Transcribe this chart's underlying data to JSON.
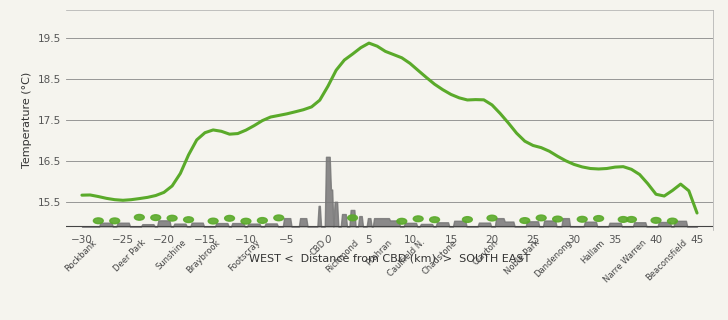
{
  "title": "",
  "ylabel": "Temperature (°C)",
  "xlabel": "WEST <  Distance from CBD (km)  >  SOUTH EAST",
  "xlim": [
    -32,
    47
  ],
  "ylim": [
    14.8,
    20.2
  ],
  "yticks": [
    15.5,
    16.5,
    17.5,
    18.5,
    19.5
  ],
  "xticks": [
    -30,
    -25,
    -20,
    -15,
    -10,
    -5,
    0,
    5,
    10,
    15,
    20,
    25,
    30,
    35,
    40,
    45
  ],
  "bg_color": "#f5f4ee",
  "line_color": "#5aaa2a",
  "grid_color": "#888888",
  "location_labels": [
    "Rockbank",
    "Deer Park",
    "Sunshine",
    "Braybrook",
    "Footscray",
    "CBD",
    "Richmond",
    "Prahran",
    "Caulfield N.",
    "Chadstone",
    "Clayton",
    "Noble Park",
    "Dandenong",
    "Hallam",
    "Narre Warren",
    "Beaconsfield"
  ],
  "location_x": [
    -28,
    -22,
    -17,
    -13,
    -8,
    0,
    4,
    8,
    12,
    16,
    21,
    26,
    30,
    34,
    39,
    44
  ],
  "temp_x": [
    -30,
    -29,
    -28,
    -27,
    -26,
    -25,
    -24,
    -23,
    -22,
    -21,
    -20,
    -19,
    -18,
    -17,
    -16,
    -15,
    -14,
    -13,
    -12,
    -11,
    -10,
    -9,
    -8,
    -7,
    -6,
    -5,
    -4,
    -3,
    -2,
    -1,
    0,
    1,
    2,
    3,
    4,
    5,
    6,
    7,
    8,
    9,
    10,
    11,
    12,
    13,
    14,
    15,
    16,
    17,
    18,
    19,
    20,
    21,
    22,
    23,
    24,
    25,
    26,
    27,
    28,
    29,
    30,
    31,
    32,
    33,
    34,
    35,
    36,
    37,
    38,
    39,
    40,
    41,
    42,
    43,
    44,
    45
  ],
  "temp_y": [
    15.65,
    15.7,
    15.62,
    15.58,
    15.55,
    15.52,
    15.55,
    15.58,
    15.6,
    15.65,
    15.7,
    15.85,
    16.1,
    16.7,
    17.1,
    17.2,
    17.3,
    17.25,
    17.1,
    17.15,
    17.25,
    17.35,
    17.5,
    17.6,
    17.6,
    17.65,
    17.7,
    17.75,
    17.8,
    17.9,
    18.3,
    18.8,
    19.0,
    19.1,
    19.25,
    19.5,
    19.3,
    19.15,
    19.1,
    19.05,
    18.9,
    18.7,
    18.55,
    18.35,
    18.25,
    18.1,
    18.05,
    17.95,
    18.0,
    18.05,
    17.9,
    17.65,
    17.45,
    17.15,
    16.95,
    16.85,
    16.85,
    16.75,
    16.6,
    16.5,
    16.4,
    16.35,
    16.3,
    16.3,
    16.3,
    16.35,
    16.4,
    16.3,
    16.2,
    16.0,
    15.55,
    15.6,
    15.75,
    16.0,
    16.1,
    14.9
  ]
}
